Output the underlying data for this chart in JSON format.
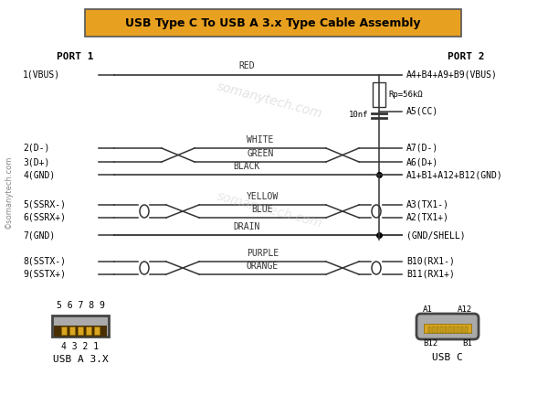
{
  "title": "USB Type C To USB A 3.x Type Cable Assembly",
  "title_bg": "#E8A020",
  "title_color": "#000000",
  "bg_color": "#FFFFFF",
  "copyright": "©somanytech.com",
  "watermark": "somanytech.com",
  "port1_label": "PORT 1",
  "port2_label": "PORT 2",
  "left_pins": [
    "1(VBUS)",
    "2(D-)",
    "3(D+)",
    "4(GND)",
    "5(SSRX-)",
    "6(SSRX+)",
    "7(GND)",
    "8(SSTX-)",
    "9(SSTX+)"
  ],
  "right_pins_vbus": "A4+B4+A9+B9(VBUS)",
  "right_pins_cc": "A5(CC)",
  "right_pins_dm": "A7(D-)",
  "right_pins_dp": "A6(D+)",
  "right_pins_gnd": "A1+B1+A12+B12(GND)",
  "right_pins_tx1m": "A3(TX1-)",
  "right_pins_tx1p": "A2(TX1+)",
  "right_pins_shell": "(GND/SHELL)",
  "right_pins_rx1m": "B10(RX1-)",
  "right_pins_rx1p": "B11(RX1+)",
  "resistor_label": "Rp=56kΩ",
  "capacitor_label": "10nf",
  "wire_red": "RED",
  "wire_white": "WHITE",
  "wire_green": "GREEN",
  "wire_black": "BLACK",
  "wire_yellow": "YELLOW",
  "wire_blue": "BLUE",
  "wire_drain": "DRAIN",
  "wire_purple": "PURPLE",
  "wire_orange": "ORANGE",
  "usba_label": "USB A 3.X",
  "usbc_label": "USB C",
  "usba_pins_top": "5 6 7 8 9",
  "usba_pins_bottom": "4 3 2 1",
  "usbc_tl": "A1",
  "usbc_tr": "A12",
  "usbc_bl": "B12",
  "usbc_br": "B1"
}
